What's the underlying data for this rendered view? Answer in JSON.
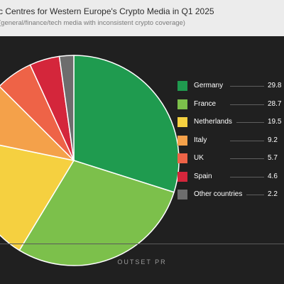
{
  "title": "c Centres for Western Europe's Crypto Media in Q1 2025",
  "subtitle": "(general/finance/tech media with inconsistent crypto coverage)",
  "brand": "OUTSET PR",
  "chart_data": {
    "type": "pie",
    "series": [
      {
        "name": "Germany",
        "value": 29.8,
        "label": "29.8",
        "color": "#1f9b4f"
      },
      {
        "name": "France",
        "value": 28.7,
        "label": "28.7",
        "color": "#7cc04b"
      },
      {
        "name": "Netherlands",
        "value": 19.5,
        "label": "19.5",
        "color": "#f5d040"
      },
      {
        "name": "Italy",
        "value": 9.2,
        "label": "9.2",
        "color": "#f4a14a"
      },
      {
        "name": "UK",
        "value": 5.7,
        "label": "5.7",
        "color": "#ee6347"
      },
      {
        "name": "Spain",
        "value": 4.6,
        "label": "4.6",
        "color": "#d4263b"
      },
      {
        "name": "Other countries",
        "value": 2.2,
        "label": "2.2",
        "color": "#6d6d6d"
      }
    ],
    "legend_position": "right"
  }
}
